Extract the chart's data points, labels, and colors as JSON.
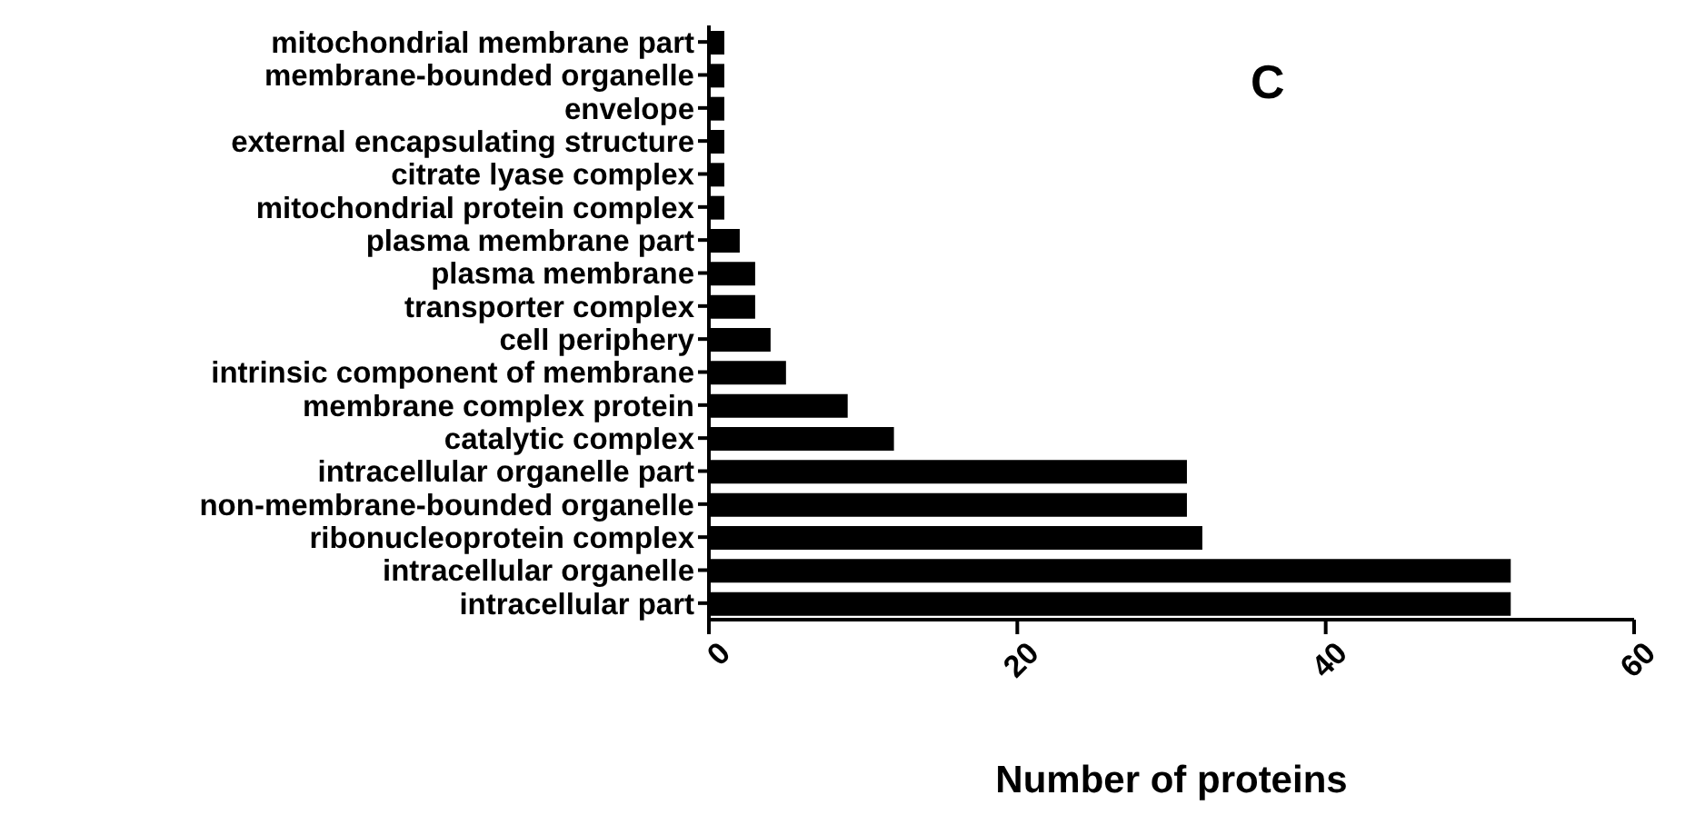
{
  "chart_data": {
    "type": "bar",
    "orientation": "horizontal",
    "title": "C",
    "xlabel": "Number of proteins",
    "categories": [
      "mitochondrial membrane part",
      "membrane-bounded organelle",
      "envelope",
      "external encapsulating structure",
      "citrate lyase complex",
      "mitochondrial protein complex",
      "plasma membrane part",
      "plasma membrane",
      "transporter complex",
      "cell periphery",
      "intrinsic component of membrane",
      "membrane complex protein",
      "catalytic complex",
      "intracellular organelle part",
      "non-membrane-bounded organelle",
      "ribonucleoprotein complex",
      "intracellular organelle",
      "intracellular part"
    ],
    "values": [
      1,
      1,
      1,
      1,
      1,
      1,
      2,
      3,
      3,
      4,
      5,
      9,
      12,
      31,
      31,
      32,
      52,
      52
    ],
    "color": "#000000",
    "xlim": [
      0,
      60
    ],
    "xticks": [
      0,
      20,
      40,
      60
    ],
    "grid": false,
    "legend": false
  }
}
